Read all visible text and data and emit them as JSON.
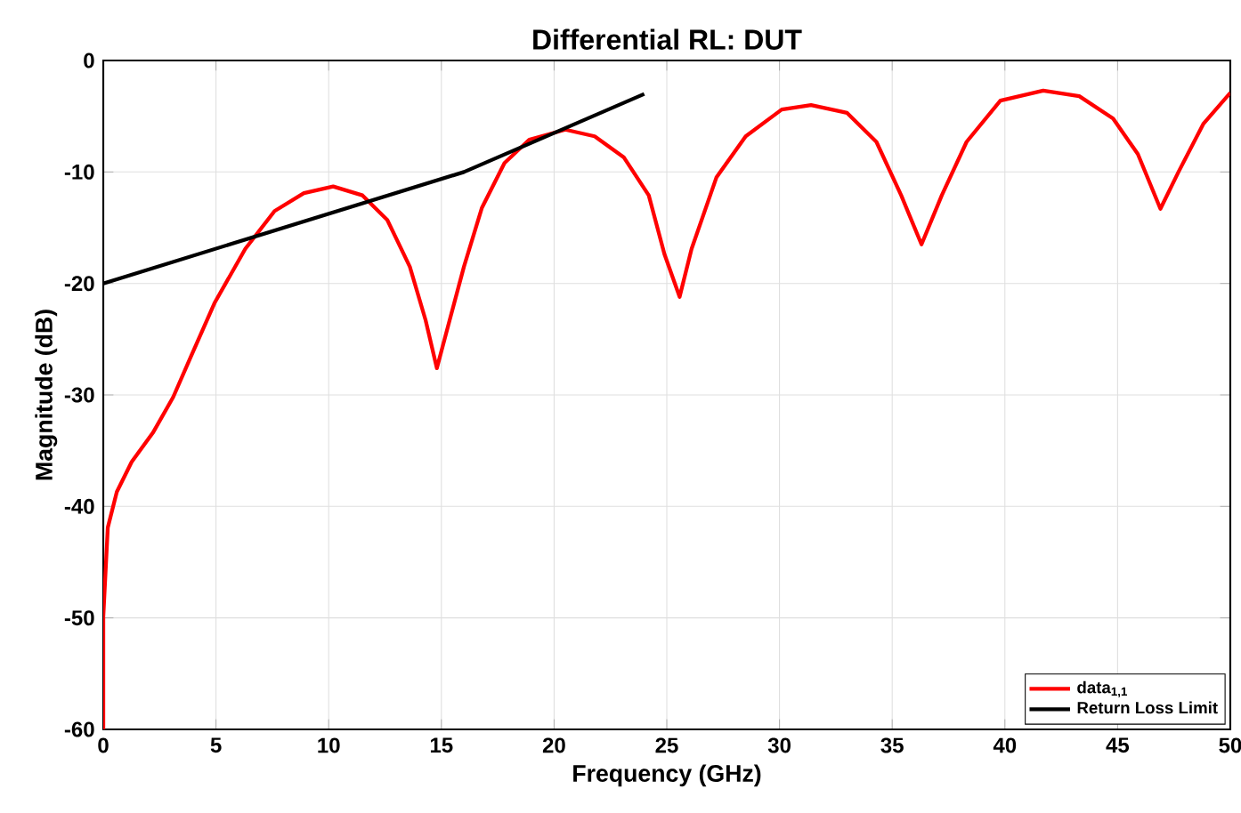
{
  "chart_data": {
    "type": "line",
    "title": "Differential RL: DUT",
    "xlabel": "Frequency (GHz)",
    "ylabel": "Magnitude (dB)",
    "xlim": [
      0,
      50
    ],
    "ylim": [
      -60,
      0
    ],
    "xticks": [
      0,
      5,
      10,
      15,
      20,
      25,
      30,
      35,
      40,
      45,
      50
    ],
    "yticks": [
      -60,
      -50,
      -40,
      -30,
      -20,
      -10,
      0
    ],
    "grid": true,
    "legend": "bottom right",
    "series": [
      {
        "name": "data$_{1,1}$",
        "color": "#ff0000",
        "x": [
          0,
          0,
          0.2,
          0.6,
          1.26,
          2.2,
          3.1,
          3.9,
          4.95,
          6.3,
          7.6,
          8.9,
          10.2,
          11.5,
          12.6,
          13.6,
          14.3,
          14.8,
          15.3,
          16,
          16.8,
          17.8,
          18.9,
          20.5,
          21.8,
          23.1,
          24.2,
          24.9,
          25.57,
          26.1,
          27.2,
          28.5,
          30.1,
          31.4,
          33.0,
          34.3,
          35.4,
          36.3,
          37.2,
          38.3,
          39.8,
          41.7,
          43.3,
          44.8,
          45.9,
          46.9,
          47.7,
          48.8,
          50.0
        ],
        "values": [
          -60,
          -49.9,
          -41.9,
          -38.7,
          -36,
          -33.4,
          -30.2,
          -26.5,
          -21.7,
          -16.9,
          -13.5,
          -11.9,
          -11.3,
          -12.1,
          -14.3,
          -18.5,
          -23.3,
          -27.6,
          -23.8,
          -18.5,
          -13.2,
          -9.2,
          -7.1,
          -6.2,
          -6.8,
          -8.7,
          -12.1,
          -17.4,
          -21.2,
          -16.9,
          -10.5,
          -6.8,
          -4.4,
          -4.0,
          -4.7,
          -7.3,
          -12.1,
          -16.5,
          -12.1,
          -7.3,
          -3.6,
          -2.7,
          -3.2,
          -5.2,
          -8.4,
          -13.3,
          -10.0,
          -5.7,
          -2.9
        ]
      },
      {
        "name": "Return Loss Limit",
        "color": "#000000",
        "x": [
          0,
          16,
          24
        ],
        "values": [
          -20,
          -10,
          -3
        ]
      }
    ]
  }
}
